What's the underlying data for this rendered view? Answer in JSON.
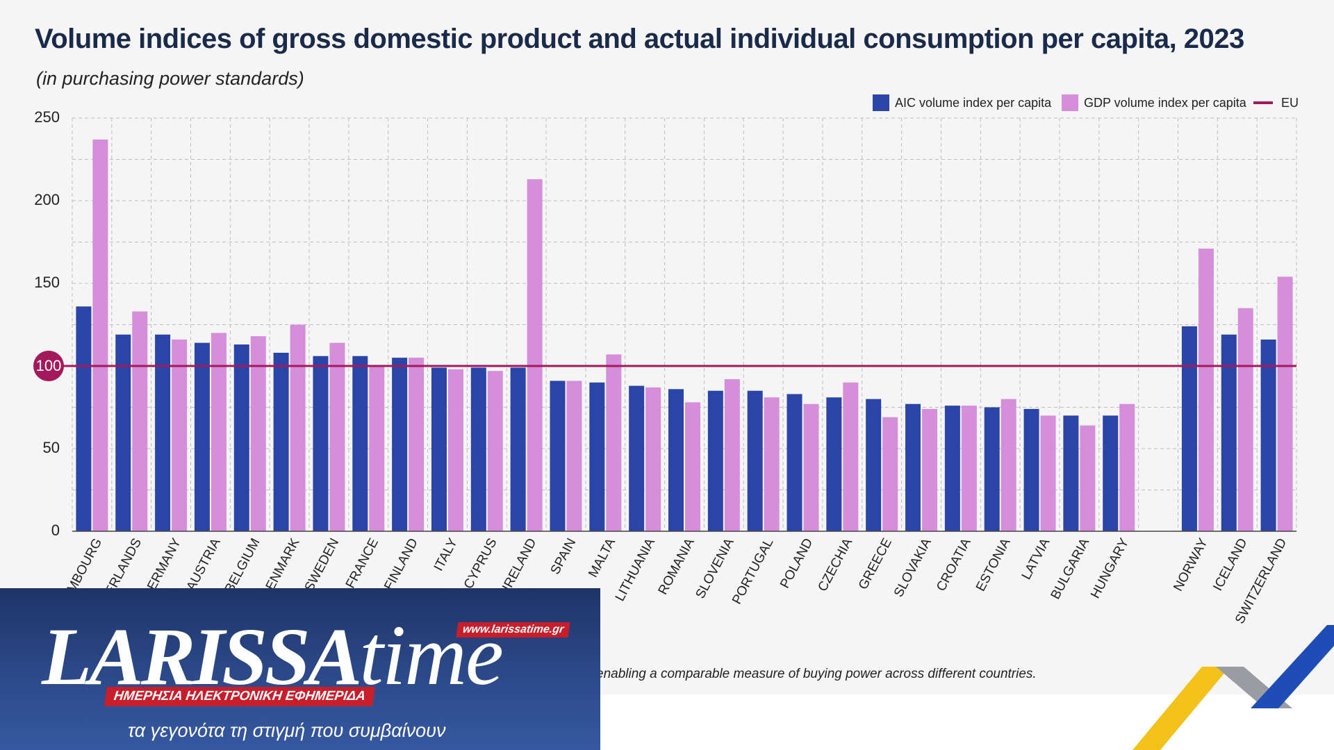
{
  "title": "Volume indices of gross domestic product and actual individual consumption per capita, 2023",
  "subtitle": "(in purchasing power standards)",
  "footnote": "enabling a comparable measure of buying power across different countries.",
  "colors": {
    "aic": "#2b44a8",
    "gdp": "#d58ed9",
    "eu": "#a3195b",
    "grid": "#bdbdbd",
    "text": "#222222"
  },
  "logo": {
    "word_main": "LARISSA",
    "word_time": "time",
    "url": "www.larissatime.gr",
    "banner": "ΗΜΕΡΗΣΙΑ ΗΛΕΚΤΡΟΝΙΚΗ ΕΦΗΜΕΡΙΔΑ",
    "tagline": "τα γεγονότα τη στιγμή που συμβαίνουν"
  },
  "chart_data": {
    "type": "bar",
    "categories": [
      "LUXEMBOURG",
      "NETHERLANDS",
      "GERMANY",
      "AUSTRIA",
      "BELGIUM",
      "DENMARK",
      "SWEDEN",
      "FRANCE",
      "FINLAND",
      "ITALY",
      "CYPRUS",
      "IRELAND",
      "SPAIN",
      "MALTA",
      "LITHUANIA",
      "ROMANIA",
      "SLOVENIA",
      "PORTUGAL",
      "POLAND",
      "CZECHIA",
      "GREECE",
      "SLOVAKIA",
      "CROATIA",
      "ESTONIA",
      "LATVIA",
      "BULGARIA",
      "HUNGARY",
      "",
      "NORWAY",
      "ICELAND",
      "SWITZERLAND"
    ],
    "series": [
      {
        "name": "AIC volume index per capita",
        "values": [
          136,
          119,
          119,
          114,
          113,
          108,
          106,
          106,
          105,
          99,
          99,
          99,
          91,
          90,
          88,
          86,
          85,
          85,
          83,
          81,
          80,
          77,
          76,
          75,
          74,
          70,
          70,
          null,
          124,
          119,
          116
        ]
      },
      {
        "name": "GDP volume index per capita",
        "values": [
          237,
          133,
          116,
          120,
          118,
          125,
          114,
          100,
          105,
          98,
          97,
          213,
          91,
          107,
          87,
          78,
          92,
          81,
          77,
          90,
          69,
          74,
          76,
          80,
          70,
          64,
          77,
          null,
          171,
          135,
          154
        ]
      }
    ],
    "reference_line": {
      "name": "EU",
      "value": 100
    },
    "ylim": [
      0,
      250
    ],
    "yticks": [
      0,
      50,
      100,
      150,
      200,
      250
    ],
    "grid": true,
    "legend_position": "top-right"
  }
}
